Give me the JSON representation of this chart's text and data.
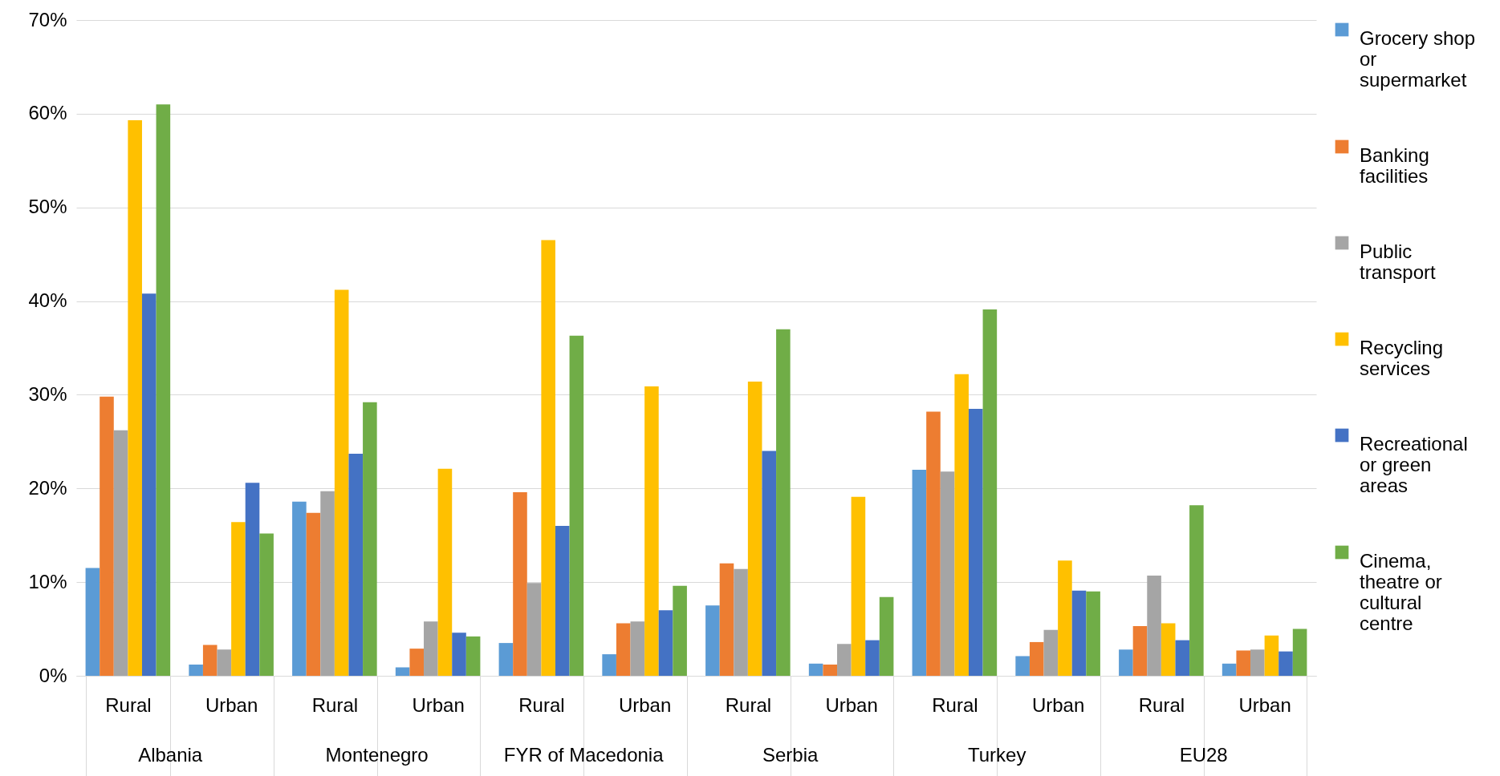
{
  "chart_data": {
    "type": "bar",
    "categories": [
      "Rural",
      "Urban",
      "Rural",
      "Urban",
      "Rural",
      "Urban",
      "Rural",
      "Urban",
      "Rural",
      "Urban",
      "Rural",
      "Urban"
    ],
    "annotations": [
      "Albania",
      "Montenegro",
      "FYR of Macedonia",
      "Serbia",
      "Turkey",
      "EU28"
    ],
    "series": [
      {
        "name": "Grocery shop or supermarket",
        "color": "#5b9bd5",
        "values": [
          11.5,
          1.2,
          18.6,
          0.9,
          3.5,
          2.3,
          7.5,
          1.3,
          22.0,
          2.1,
          2.8,
          1.3
        ]
      },
      {
        "name": "Banking facilities",
        "color": "#ed7d31",
        "values": [
          29.8,
          3.3,
          17.4,
          2.9,
          19.6,
          5.6,
          12.0,
          1.2,
          28.2,
          3.6,
          5.3,
          2.7
        ]
      },
      {
        "name": "Public transport",
        "color": "#a5a5a5",
        "values": [
          26.2,
          2.8,
          19.7,
          5.8,
          9.9,
          5.8,
          11.4,
          3.4,
          21.8,
          4.9,
          10.7,
          2.8
        ]
      },
      {
        "name": "Recycling services",
        "color": "#ffc000",
        "values": [
          59.3,
          16.4,
          41.2,
          22.1,
          46.5,
          30.9,
          31.4,
          19.1,
          32.2,
          12.3,
          5.6,
          4.3
        ]
      },
      {
        "name": "Recreational or green areas",
        "color": "#4472c4",
        "values": [
          40.8,
          20.6,
          23.7,
          4.6,
          16.0,
          7.0,
          24.0,
          3.8,
          28.5,
          9.1,
          3.8,
          2.6
        ]
      },
      {
        "name": "Cinema, theatre or cultural centre",
        "color": "#70ad47",
        "values": [
          61.0,
          15.2,
          29.2,
          4.2,
          36.3,
          9.6,
          37.0,
          8.4,
          39.1,
          9.0,
          18.2,
          5.0
        ]
      }
    ],
    "ylim": [
      0,
      70
    ],
    "yticks": [
      {
        "value": 0,
        "label": "0%"
      },
      {
        "value": 10,
        "label": "10%"
      },
      {
        "value": 20,
        "label": "20%"
      },
      {
        "value": 30,
        "label": "30%"
      },
      {
        "value": 40,
        "label": "40%"
      },
      {
        "value": 50,
        "label": "50%"
      },
      {
        "value": 60,
        "label": "60%"
      },
      {
        "value": 70,
        "label": "70%"
      }
    ],
    "grid": "y",
    "legend": "right"
  }
}
